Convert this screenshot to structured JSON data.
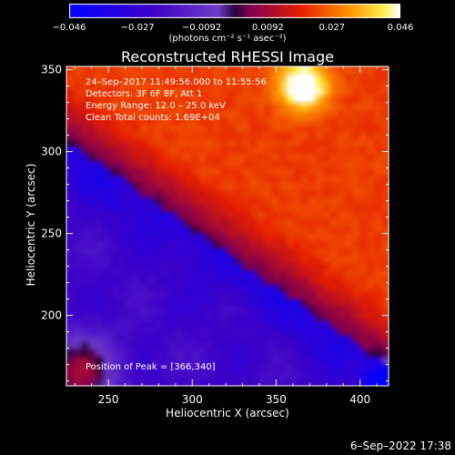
{
  "chart_data": {
    "type": "heatmap",
    "title": "Reconstructed RHESSI Image",
    "xlabel": "Heliocentric X (arcsec)",
    "ylabel": "Heliocentric Y (arcsec)",
    "xlim": [
      225,
      417
    ],
    "ylim": [
      157,
      352
    ],
    "xticks": [
      250,
      300,
      350,
      400
    ],
    "yticks": [
      200,
      250,
      300,
      350
    ],
    "colorbar": {
      "range": [
        -0.046,
        0.046
      ],
      "ticks": [
        "−0.046",
        "−0.027",
        "−0.0092",
        "0.0092",
        "0.027",
        "0.046"
      ],
      "tick_values": [
        -0.046,
        -0.027,
        -0.0092,
        0.0092,
        0.027,
        0.046
      ],
      "label": "(photons cm⁻² s⁻¹ asec⁻²)"
    },
    "annotations": [
      "24–Sep–2017 11:49:56.000 to 11:55:56",
      "Detectors: 3F 6F 8F, Att 1",
      "Energy Range: 12.0 – 25.0 keV",
      "Clean    Total counts: 1.69E+04"
    ],
    "peak_text": "Position of Peak = [366,340]",
    "peak": [
      366,
      340
    ]
  },
  "date_stamp": "6–Sep–2022 17:38"
}
